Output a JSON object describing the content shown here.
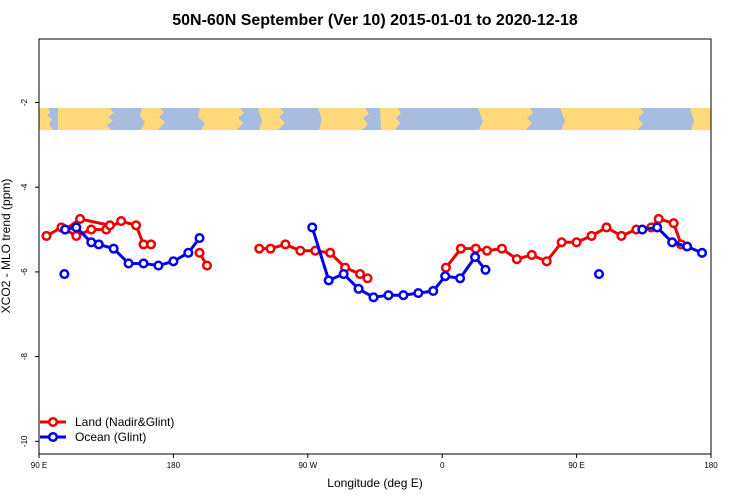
{
  "chart_data": {
    "type": "line",
    "title": "50N-60N September (Ver 10)   2015-01-01 to 2020-12-18",
    "xlabel": "Longitude (deg E)",
    "ylabel": "XCO2 - MLO trend (ppm)",
    "xlim": [
      90,
      540
    ],
    "ylim": [
      -10.3,
      -0.5
    ],
    "x_ticks": [
      {
        "value": 90,
        "label": "90 E"
      },
      {
        "value": 180,
        "label": "180"
      },
      {
        "value": 270,
        "label": "90 W"
      },
      {
        "value": 360,
        "label": "0"
      },
      {
        "value": 450,
        "label": "90 E"
      },
      {
        "value": 540,
        "label": "180"
      }
    ],
    "y_ticks": [
      -10,
      -8,
      -6,
      -4,
      -2
    ],
    "grid": false,
    "legend_position": "bottom-left",
    "map_band": {
      "y_range": [
        -1.7,
        -2.2
      ],
      "land_color": "#ffd97a",
      "ocean_color": "#a8bce0"
    },
    "series": [
      {
        "name": "Land (Nadir&Glint)",
        "color": "#ee0000",
        "segments": [
          [
            [
              95,
              -5.15
            ],
            [
              105,
              -4.95
            ],
            [
              115,
              -5.15
            ],
            [
              125,
              -5.0
            ],
            [
              135,
              -5.0
            ],
            [
              145,
              -4.8
            ],
            [
              155,
              -4.9
            ],
            [
              160,
              -5.35
            ],
            [
              165,
              -5.35
            ]
          ],
          [
            [
              107.5,
              -5.0
            ],
            [
              117.5,
              -4.75
            ],
            [
              137.5,
              -4.9
            ]
          ],
          [
            [
              197.5,
              -5.55
            ],
            [
              202.5,
              -5.85
            ]
          ],
          [
            [
              237.5,
              -5.45
            ],
            [
              245,
              -5.45
            ],
            [
              255,
              -5.35
            ],
            [
              265,
              -5.5
            ],
            [
              275,
              -5.5
            ],
            [
              285,
              -5.55
            ],
            [
              295,
              -5.9
            ],
            [
              305,
              -6.05
            ],
            [
              310,
              -6.15
            ]
          ],
          [
            [
              362.5,
              -5.9
            ],
            [
              372.5,
              -5.45
            ],
            [
              382.5,
              -5.45
            ],
            [
              390,
              -5.5
            ],
            [
              400,
              -5.45
            ],
            [
              410,
              -5.7
            ],
            [
              420,
              -5.6
            ],
            [
              430,
              -5.75
            ],
            [
              440,
              -5.3
            ],
            [
              450,
              -5.3
            ],
            [
              460,
              -5.15
            ],
            [
              470,
              -4.95
            ],
            [
              480,
              -5.15
            ],
            [
              490,
              -5.0
            ],
            [
              500,
              -4.95
            ],
            [
              505,
              -4.75
            ],
            [
              515,
              -4.85
            ],
            [
              520,
              -5.35
            ]
          ]
        ]
      },
      {
        "name": "Ocean (Glint)",
        "color": "#0000ee",
        "segments": [
          [
            [
              107.5,
              -5.0
            ],
            [
              115,
              -4.95
            ],
            [
              125,
              -5.3
            ],
            [
              130,
              -5.35
            ],
            [
              140,
              -5.45
            ],
            [
              150,
              -5.8
            ],
            [
              160,
              -5.8
            ],
            [
              170,
              -5.85
            ],
            [
              180,
              -5.75
            ],
            [
              190,
              -5.55
            ],
            [
              197.5,
              -5.2
            ]
          ],
          [
            [
              273,
              -4.95
            ],
            [
              284,
              -6.2
            ],
            [
              294,
              -6.05
            ],
            [
              304,
              -6.4
            ],
            [
              314,
              -6.6
            ],
            [
              324,
              -6.55
            ],
            [
              334,
              -6.55
            ],
            [
              344,
              -6.5
            ],
            [
              354,
              -6.45
            ],
            [
              362,
              -6.1
            ],
            [
              372,
              -6.15
            ],
            [
              382,
              -5.65
            ],
            [
              389,
              -5.95
            ]
          ],
          [
            [
              494,
              -5.0
            ],
            [
              504,
              -4.95
            ],
            [
              514,
              -5.3
            ],
            [
              524,
              -5.4
            ],
            [
              534,
              -5.55
            ]
          ]
        ],
        "isolated_points": [
          [
            107,
            -6.05
          ],
          [
            465,
            -6.05
          ]
        ]
      }
    ]
  }
}
